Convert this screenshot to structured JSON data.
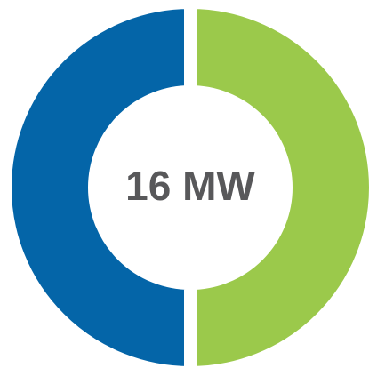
{
  "chart_data": {
    "type": "donut",
    "title": "16 MW",
    "categories": [
      null,
      null
    ],
    "values": [
      50,
      50
    ],
    "colors": [
      "#9bc94b",
      "#0465a8"
    ]
  }
}
